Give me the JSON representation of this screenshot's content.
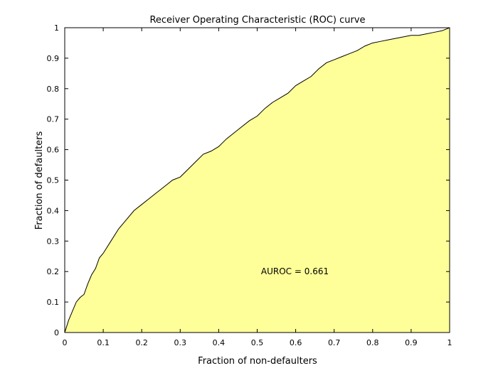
{
  "chart_data": {
    "type": "area",
    "title": "Receiver Operating Characteristic (ROC) curve",
    "xlabel": "Fraction of non-defaulters",
    "ylabel": "Fraction of defaulters",
    "xlim": [
      0,
      1
    ],
    "ylim": [
      0,
      1
    ],
    "xticks": [
      0,
      0.1,
      0.2,
      0.3,
      0.4,
      0.5,
      0.6,
      0.7,
      0.8,
      0.9,
      1
    ],
    "yticks": [
      0,
      0.1,
      0.2,
      0.3,
      0.4,
      0.5,
      0.6,
      0.7,
      0.8,
      0.9,
      1
    ],
    "xtick_labels": [
      "0",
      "0.1",
      "0.2",
      "0.3",
      "0.4",
      "0.5",
      "0.6",
      "0.7",
      "0.8",
      "0.9",
      "1"
    ],
    "ytick_labels": [
      "0",
      "0.1",
      "0.2",
      "0.3",
      "0.4",
      "0.5",
      "0.6",
      "0.7",
      "0.8",
      "0.9",
      "1"
    ],
    "grid": false,
    "fill_color": "#ffff99",
    "line_color": "#000000",
    "annotation": {
      "text": "AUROC = 0.661",
      "x": 0.51,
      "y": 0.2
    },
    "series": [
      {
        "x": [
          0,
          0.005,
          0.01,
          0.02,
          0.03,
          0.04,
          0.05,
          0.06,
          0.07,
          0.08,
          0.09,
          0.1,
          0.12,
          0.14,
          0.16,
          0.18,
          0.2,
          0.22,
          0.24,
          0.26,
          0.28,
          0.3,
          0.32,
          0.34,
          0.36,
          0.38,
          0.4,
          0.42,
          0.44,
          0.46,
          0.48,
          0.5,
          0.52,
          0.54,
          0.56,
          0.58,
          0.6,
          0.62,
          0.64,
          0.66,
          0.68,
          0.7,
          0.72,
          0.74,
          0.76,
          0.78,
          0.8,
          0.82,
          0.84,
          0.86,
          0.88,
          0.9,
          0.92,
          0.94,
          0.96,
          0.98,
          1.0
        ],
        "y": [
          0,
          0.02,
          0.04,
          0.07,
          0.1,
          0.115,
          0.125,
          0.16,
          0.19,
          0.21,
          0.245,
          0.26,
          0.3,
          0.34,
          0.37,
          0.4,
          0.42,
          0.44,
          0.46,
          0.48,
          0.5,
          0.51,
          0.535,
          0.56,
          0.585,
          0.595,
          0.61,
          0.635,
          0.655,
          0.675,
          0.695,
          0.71,
          0.735,
          0.755,
          0.77,
          0.785,
          0.81,
          0.825,
          0.84,
          0.865,
          0.885,
          0.895,
          0.905,
          0.915,
          0.925,
          0.94,
          0.95,
          0.955,
          0.96,
          0.965,
          0.97,
          0.975,
          0.975,
          0.98,
          0.985,
          0.99,
          1.0
        ]
      }
    ]
  }
}
